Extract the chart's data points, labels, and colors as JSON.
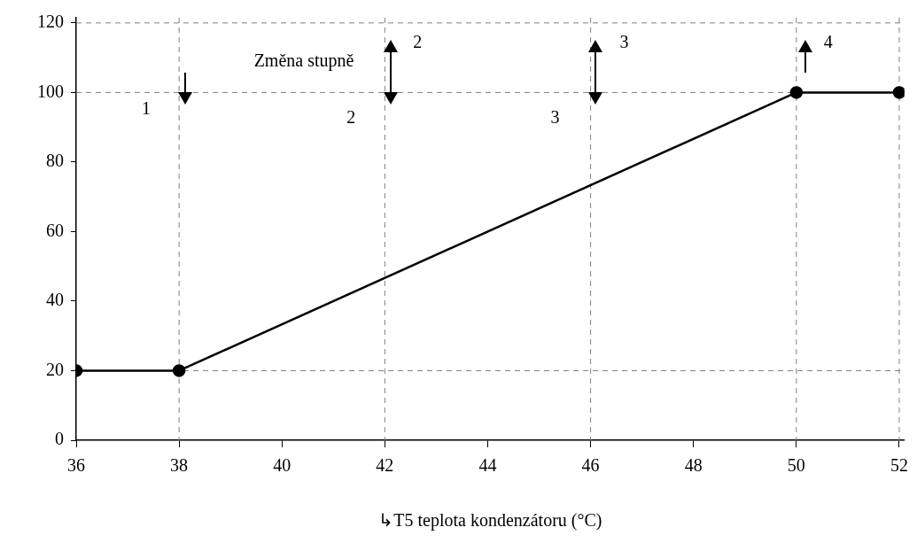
{
  "chart_data": {
    "type": "line",
    "xlabel": "↳T5 teplota kondenzátoru (°C)",
    "x": [
      36,
      38,
      50,
      52
    ],
    "series": [
      {
        "color": "#000000",
        "values": [
          20,
          20,
          100,
          100
        ]
      }
    ],
    "xlim": [
      36,
      52.1
    ],
    "xticks": [
      36,
      38,
      40,
      42,
      44,
      46,
      48,
      50,
      52
    ],
    "ylim": [
      0,
      121.5
    ],
    "yticks": [
      0,
      20,
      40,
      60,
      80,
      100,
      120
    ],
    "grid": false,
    "legend": false,
    "marker": "circle",
    "line_style": "solid",
    "ref_lines": [
      {
        "axis": "y",
        "value": 20,
        "color": "#808080",
        "line_style": "dashed"
      },
      {
        "axis": "y",
        "value": 100,
        "color": "#808080",
        "line_style": "dashed"
      },
      {
        "axis": "y",
        "value": 120,
        "color": "#808080",
        "line_style": "dashed"
      },
      {
        "axis": "x",
        "value": 38,
        "color": "#808080",
        "line_style": "dashed"
      },
      {
        "axis": "x",
        "value": 42,
        "color": "#808080",
        "line_style": "dashed"
      },
      {
        "axis": "x",
        "value": 46,
        "color": "#808080",
        "line_style": "dashed"
      },
      {
        "axis": "x",
        "value": 50,
        "color": "#808080",
        "line_style": "dashed"
      },
      {
        "axis": "x",
        "value": 52,
        "color": "#808080",
        "line_style": "dashed"
      }
    ],
    "annotations": [
      "Změna stupně",
      {
        "text": "1",
        "x": 38,
        "y": 100
      },
      {
        "text": "2",
        "x": 42,
        "y": 100
      },
      {
        "text": "2",
        "x": 42,
        "y": 100
      },
      {
        "text": "3",
        "x": 46,
        "y": 100
      },
      {
        "text": "3",
        "x": 46,
        "y": 100
      },
      {
        "text": "4",
        "x": 50,
        "y": 100
      }
    ]
  }
}
